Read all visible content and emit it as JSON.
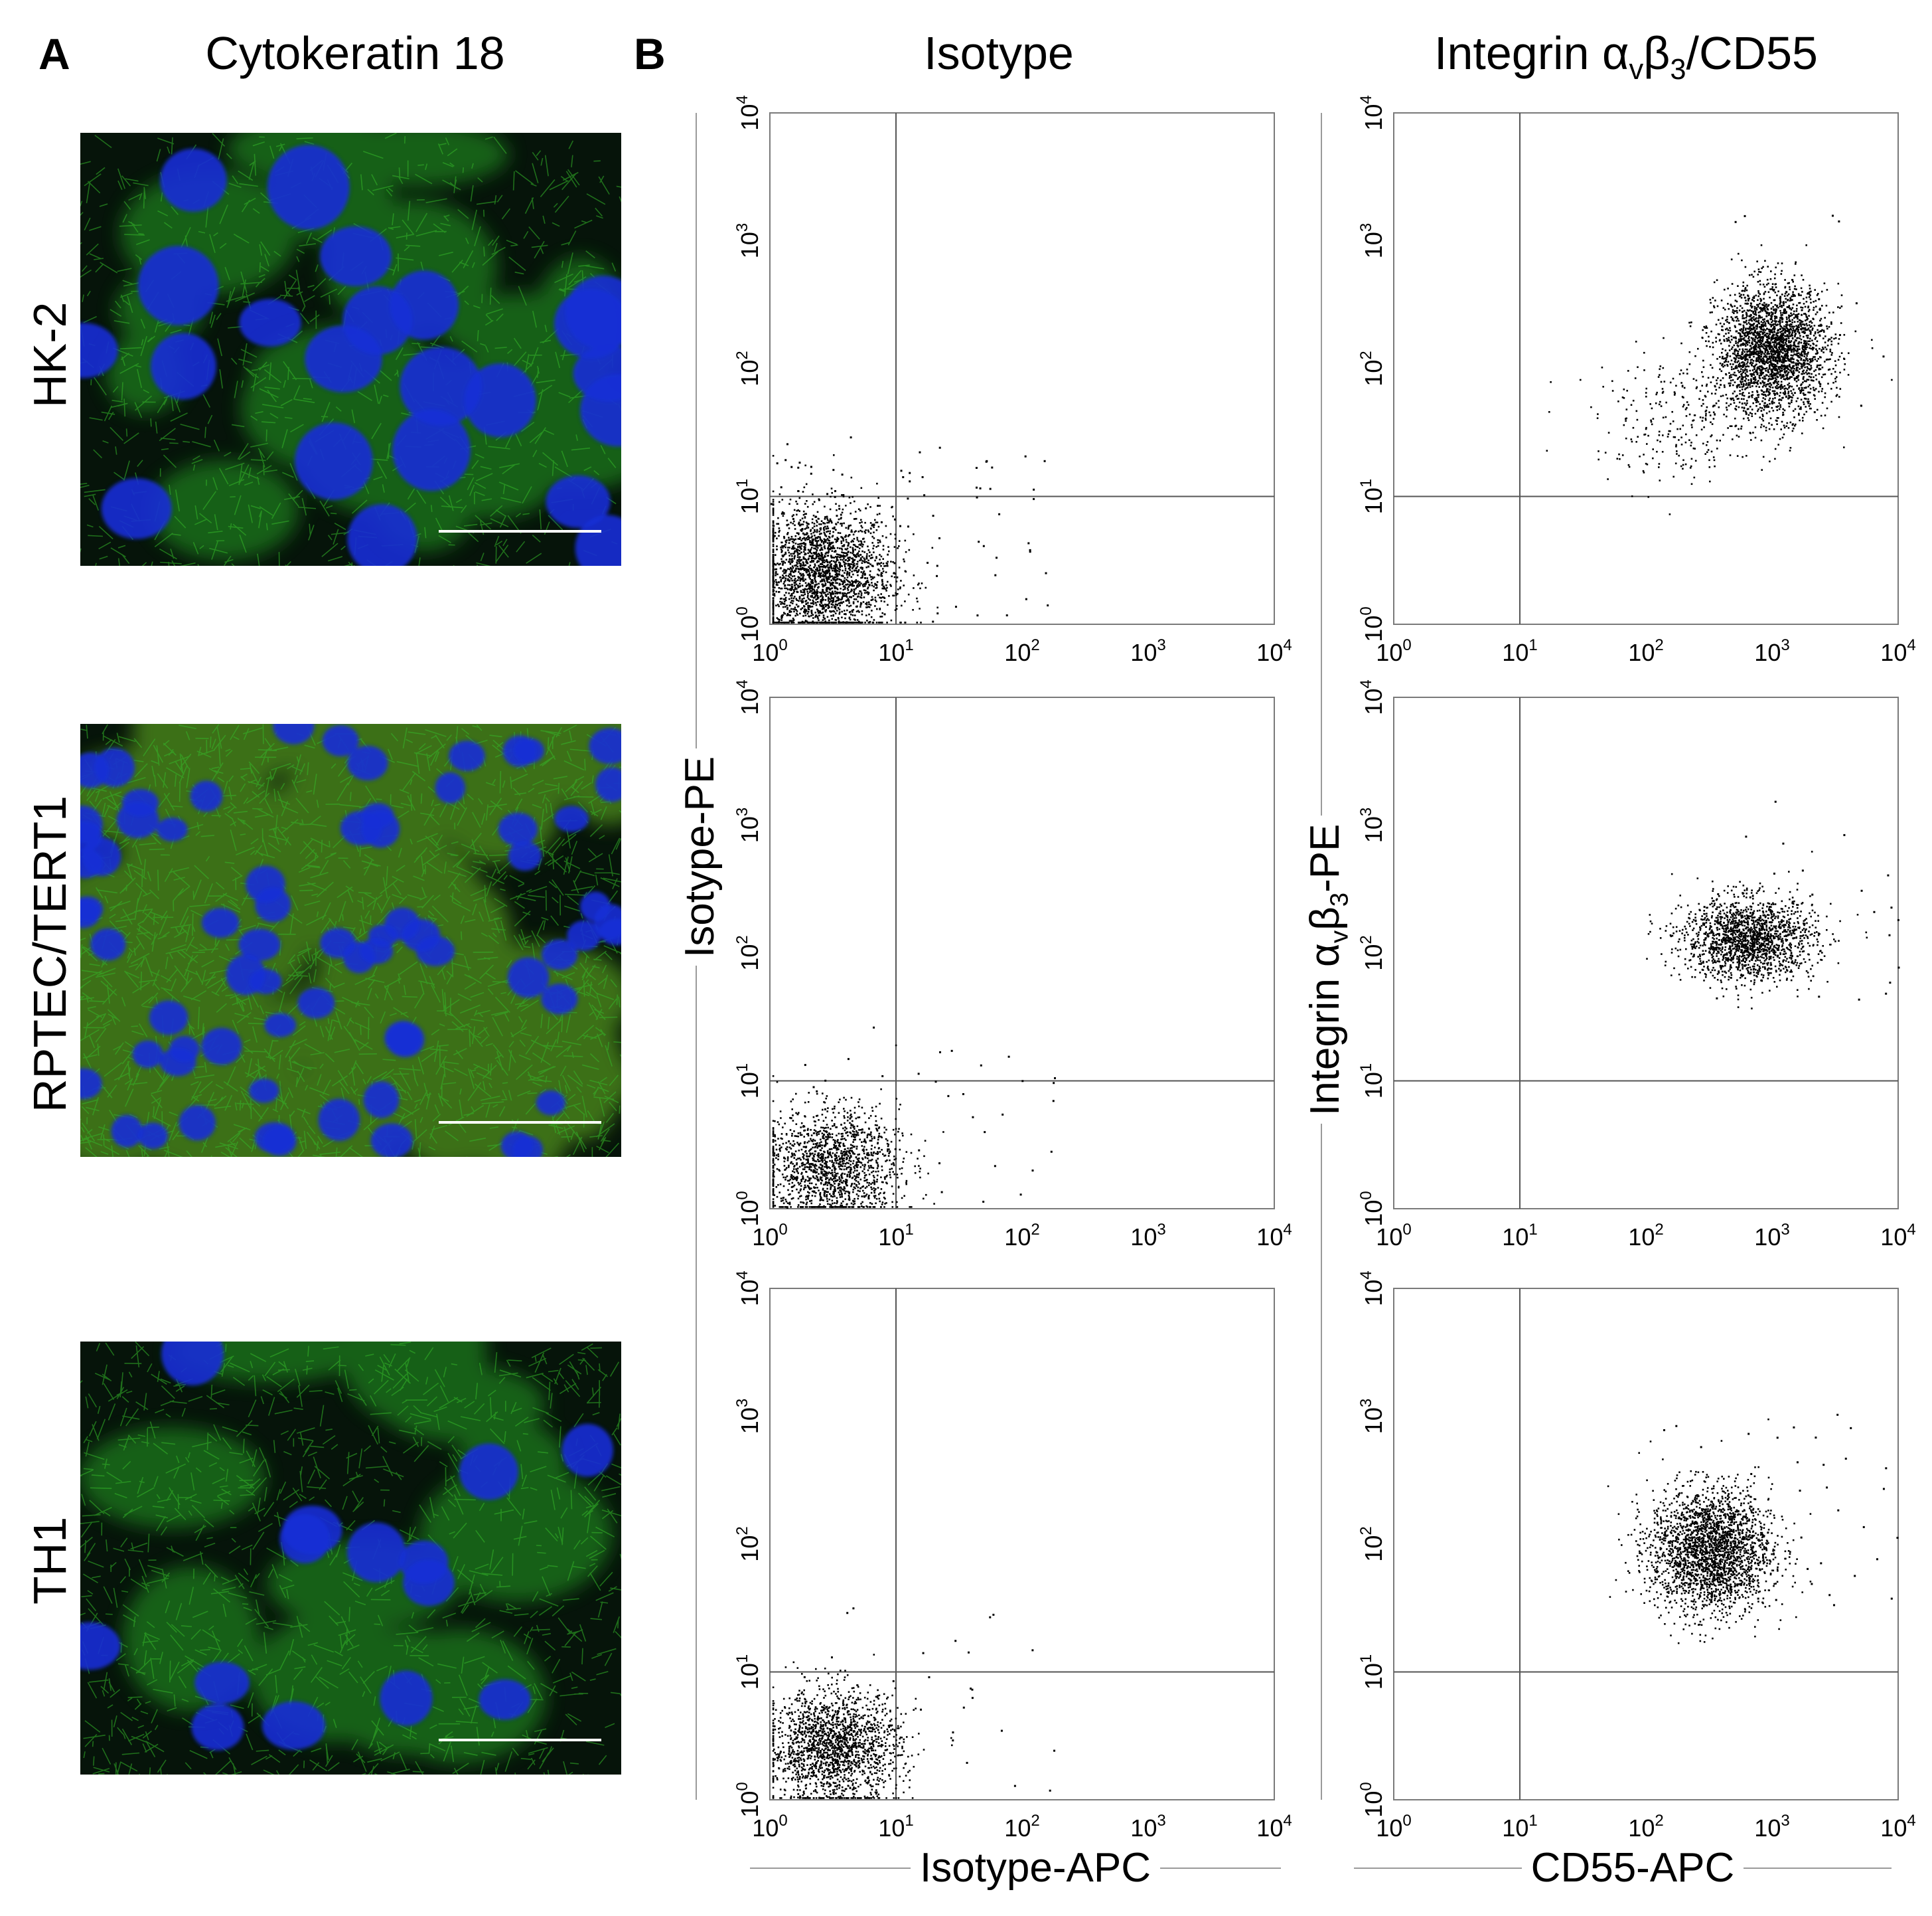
{
  "panel_a": {
    "letter": "A",
    "title": "Cytokeratin 18",
    "rows": [
      {
        "label": "HK-2",
        "style": "hk2"
      },
      {
        "label": "RPTEC/TERT1",
        "style": "rptec"
      },
      {
        "label": "TH1",
        "style": "th1"
      }
    ]
  },
  "panel_b": {
    "letter": "B",
    "columns": [
      {
        "title": "Isotype"
      },
      {
        "title": "Integrin α",
        "title_sub1": "v",
        "title_mid": "β",
        "title_sub2": "3",
        "title_end": "/CD55"
      }
    ],
    "y_titles": [
      {
        "text": "Isotype-PE"
      },
      {
        "text": "Integrin α",
        "sub1": "v",
        "mid": "β",
        "sub2": "3",
        "end": "-PE"
      }
    ],
    "x_titles": [
      {
        "text": "Isotype-APC"
      },
      {
        "text": "CD55-APC"
      }
    ]
  },
  "colors": {
    "nucleus": "#1a2fd6",
    "cytokeratin": "#35b82a",
    "dots": "#000000",
    "frame": "#7a7a7a"
  },
  "chart_data": [
    {
      "type": "scatter",
      "panel": "Isotype / HK-2",
      "x_scale": "log",
      "y_scale": "log",
      "xlim": [
        1,
        10000
      ],
      "ylim": [
        1,
        10000
      ],
      "quadrant_gate": [
        10,
        10
      ],
      "tick_labels": [
        "10^0",
        "10^1",
        "10^2",
        "10^3",
        "10^4"
      ],
      "populations": [
        {
          "center": [
            2.5,
            2.5
          ],
          "spread": [
            0.28,
            0.26
          ],
          "count": 2400
        }
      ],
      "sparse_events": 90
    },
    {
      "type": "scatter",
      "panel": "Integrin/CD55 / HK-2",
      "x_scale": "log",
      "y_scale": "log",
      "xlim": [
        1,
        10000
      ],
      "ylim": [
        1,
        10000
      ],
      "quadrant_gate": [
        10,
        10
      ],
      "tick_labels": [
        "10^0",
        "10^1",
        "10^2",
        "10^3",
        "10^4"
      ],
      "populations": [
        {
          "center": [
            1000,
            140
          ],
          "spread": [
            0.22,
            0.25
          ],
          "count": 2600
        },
        {
          "center": [
            200,
            40
          ],
          "spread": [
            0.35,
            0.25
          ],
          "count": 280
        }
      ],
      "sparse_events": 20
    },
    {
      "type": "scatter",
      "panel": "Isotype / RPTEC/TERT1",
      "x_scale": "log",
      "y_scale": "log",
      "xlim": [
        1,
        10000
      ],
      "ylim": [
        1,
        10000
      ],
      "quadrant_gate": [
        10,
        10
      ],
      "tick_labels": [
        "10^0",
        "10^1",
        "10^2",
        "10^3",
        "10^4"
      ],
      "populations": [
        {
          "center": [
            3,
            2.2
          ],
          "spread": [
            0.27,
            0.22
          ],
          "count": 1500
        }
      ],
      "sparse_events": 45
    },
    {
      "type": "scatter",
      "panel": "Integrin/CD55 / RPTEC/TERT1",
      "x_scale": "log",
      "y_scale": "log",
      "xlim": [
        1,
        10000
      ],
      "ylim": [
        1,
        10000
      ],
      "quadrant_gate": [
        10,
        10
      ],
      "tick_labels": [
        "10^0",
        "10^1",
        "10^2",
        "10^3",
        "10^4"
      ],
      "populations": [
        {
          "center": [
            650,
            130
          ],
          "spread": [
            0.26,
            0.16
          ],
          "count": 1700
        }
      ],
      "sparse_events": 35
    },
    {
      "type": "scatter",
      "panel": "Isotype / TH1",
      "x_scale": "log",
      "y_scale": "log",
      "xlim": [
        1,
        10000
      ],
      "ylim": [
        1,
        10000
      ],
      "quadrant_gate": [
        10,
        10
      ],
      "tick_labels": [
        "10^0",
        "10^1",
        "10^2",
        "10^3",
        "10^4"
      ],
      "populations": [
        {
          "center": [
            3.2,
            2.6
          ],
          "spread": [
            0.26,
            0.22
          ],
          "count": 1800
        }
      ],
      "sparse_events": 30
    },
    {
      "type": "scatter",
      "panel": "Integrin/CD55 / TH1",
      "x_scale": "log",
      "y_scale": "log",
      "xlim": [
        1,
        10000
      ],
      "ylim": [
        1,
        10000
      ],
      "quadrant_gate": [
        10,
        10
      ],
      "tick_labels": [
        "10^0",
        "10^1",
        "10^2",
        "10^3",
        "10^4"
      ],
      "populations": [
        {
          "center": [
            320,
            90
          ],
          "spread": [
            0.24,
            0.24
          ],
          "count": 2400
        }
      ],
      "sparse_events": 50
    }
  ]
}
